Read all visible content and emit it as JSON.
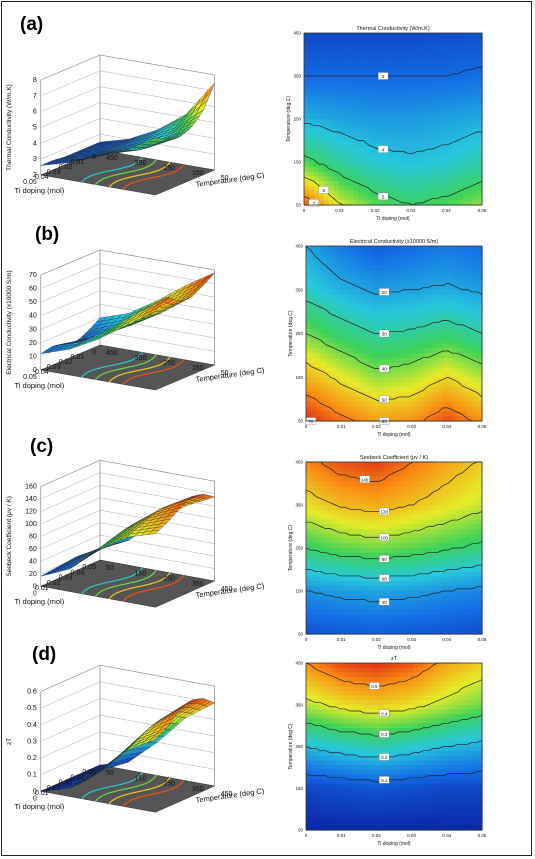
{
  "panels": [
    {
      "label": "(a)",
      "surface": {
        "zlabel": "Thermal Conductivity  (W/m.K)",
        "zticks": [
          "2",
          "3",
          "4",
          "5",
          "6",
          "7",
          "8"
        ],
        "doping_label": "Ti doping (mol)",
        "doping_ticks": [
          "0.05",
          "0.04",
          "0.03",
          "0.02",
          "0.01",
          "0"
        ],
        "temp_label": "Temperature (deg C)",
        "temp_ticks": [
          "450",
          "350",
          "250",
          "150",
          "50"
        ]
      },
      "contour": {
        "title": "Thermal Conductivity  (W/m.K)",
        "xlabel": "Ti doping (mol)",
        "ylabel": "Temperature (deg C)",
        "xticks": [
          "0",
          "0.01",
          "0.02",
          "0.03",
          "0.04",
          "0.05"
        ],
        "yticks": [
          "50",
          "150",
          "250",
          "350",
          "450"
        ],
        "level_labels": [
          "3",
          "4",
          "5",
          "6",
          "7"
        ]
      }
    },
    {
      "label": "(b)",
      "surface": {
        "zlabel": "Electrical Conductivity  (x10000 S/m)",
        "zticks": [
          "0",
          "10",
          "20",
          "30",
          "40",
          "50",
          "60",
          "70"
        ],
        "doping_label": "Ti doping (mol)",
        "doping_ticks": [
          "0.05",
          "0.04",
          "0.03",
          "0.02",
          "0.01",
          "0"
        ],
        "temp_label": "Temperature (deg C)",
        "temp_ticks": [
          "450",
          "350",
          "250",
          "150",
          "50"
        ]
      },
      "contour": {
        "title": "Electrical Conductivity  (x10000 S/m)",
        "xlabel": "Ti doping (mol)",
        "ylabel": "Temperature (deg C)",
        "xticks": [
          "0",
          "0.01",
          "0.02",
          "0.03",
          "0.04",
          "0.05"
        ],
        "yticks": [
          "50",
          "150",
          "250",
          "350",
          "450"
        ],
        "level_labels": [
          "70",
          "60",
          "50",
          "40",
          "30",
          "20"
        ]
      }
    },
    {
      "label": "(c)",
      "surface": {
        "zlabel": "Seebeck Coefficient  (μv / K)",
        "zticks": [
          "0",
          "20",
          "40",
          "60",
          "80",
          "100",
          "120",
          "140",
          "160"
        ],
        "doping_label": "Ti doping (mol)",
        "doping_ticks": [
          "0",
          "0.01",
          "0.02",
          "0.03",
          "0.04",
          "0.05"
        ],
        "temp_label": "Temperature (deg C)",
        "temp_ticks": [
          "50",
          "150",
          "250",
          "350",
          "450"
        ]
      },
      "contour": {
        "title": "Seebeck Coefficient  (μv / K)",
        "xlabel": "Ti doping (mol)",
        "ylabel": "Temperature (deg C)",
        "xticks": [
          "0",
          "0.01",
          "0.02",
          "0.03",
          "0.04",
          "0.05"
        ],
        "yticks": [
          "50",
          "150",
          "250",
          "350",
          "450"
        ],
        "level_labels": [
          "140",
          "120",
          "100",
          "80",
          "60",
          "40"
        ]
      }
    },
    {
      "label": "(d)",
      "surface": {
        "zlabel": "zT",
        "zticks": [
          "0",
          "0.1",
          "0.2",
          "0.3",
          "0.4",
          "0.5",
          "0.6"
        ],
        "doping_label": "Ti doping (mol)",
        "doping_ticks": [
          "0",
          "0.01",
          "0.02",
          "0.03",
          "0.04",
          "0.05"
        ],
        "temp_label": "Temperature (deg C)",
        "temp_ticks": [
          "50",
          "150",
          "250",
          "350",
          "450"
        ]
      },
      "contour": {
        "title": "zT",
        "xlabel": "Ti doping (mol)",
        "ylabel": "Temperature (deg C)",
        "xticks": [
          "0",
          "0.01",
          "0.02",
          "0.03",
          "0.04",
          "0.05"
        ],
        "yticks": [
          "50",
          "150",
          "250",
          "350",
          "450"
        ],
        "level_labels": [
          "0.5",
          "0.4",
          "0.3",
          "0.2",
          "0.1"
        ]
      }
    }
  ],
  "chart_data": [
    {
      "type": "heatmap",
      "title": "Thermal Conductivity  (W/m.K)",
      "xlabel": "Ti doping (mol)",
      "ylabel": "Temperature (deg C)",
      "x": [
        0,
        0.01,
        0.02,
        0.03,
        0.04,
        0.05
      ],
      "y": [
        50,
        150,
        250,
        350,
        450
      ],
      "z": [
        [
          7.5,
          6.0,
          5.3,
          5.0,
          5.2,
          5.6
        ],
        [
          5.2,
          4.6,
          4.2,
          4.1,
          4.2,
          4.5
        ],
        [
          3.9,
          3.7,
          3.6,
          3.6,
          3.7,
          3.8
        ],
        [
          3.0,
          3.0,
          3.0,
          3.0,
          3.0,
          3.1
        ],
        [
          2.5,
          2.5,
          2.5,
          2.5,
          2.6,
          2.6
        ]
      ],
      "zlim": [
        2,
        8
      ]
    },
    {
      "type": "heatmap",
      "title": "Electrical Conductivity  (x10000 S/m)",
      "xlabel": "Ti doping (mol)",
      "ylabel": "Temperature (deg C)",
      "x": [
        0,
        0.01,
        0.02,
        0.03,
        0.04,
        0.05
      ],
      "y": [
        50,
        150,
        250,
        350,
        450
      ],
      "z": [
        [
          68,
          62,
          57,
          58,
          65,
          58
        ],
        [
          55,
          48,
          42,
          44,
          50,
          44
        ],
        [
          40,
          34,
          30,
          31,
          34,
          30
        ],
        [
          27,
          22,
          19,
          20,
          21,
          19
        ],
        [
          20,
          14,
          10,
          12,
          14,
          12
        ]
      ],
      "zlim": [
        0,
        70
      ]
    },
    {
      "type": "heatmap",
      "title": "Seebeck Coefficient  (μv / K)",
      "xlabel": "Ti doping (mol)",
      "ylabel": "Temperature (deg C)",
      "x": [
        0,
        0.01,
        0.02,
        0.03,
        0.04,
        0.05
      ],
      "y": [
        50,
        150,
        250,
        350,
        450
      ],
      "z": [
        [
          18,
          20,
          22,
          20,
          18,
          16
        ],
        [
          40,
          44,
          46,
          44,
          40,
          36
        ],
        [
          80,
          88,
          92,
          88,
          82,
          76
        ],
        [
          112,
          122,
          126,
          120,
          112,
          104
        ],
        [
          135,
          148,
          152,
          140,
          128,
          118
        ]
      ],
      "zlim": [
        0,
        160
      ]
    },
    {
      "type": "heatmap",
      "title": "zT",
      "xlabel": "Ti doping (mol)",
      "ylabel": "Temperature (deg C)",
      "x": [
        0,
        0.01,
        0.02,
        0.03,
        0.04,
        0.05
      ],
      "y": [
        50,
        150,
        250,
        350,
        450
      ],
      "z": [
        [
          0.0,
          0.0,
          0.0,
          0.0,
          0.0,
          0.0
        ],
        [
          0.05,
          0.06,
          0.07,
          0.06,
          0.05,
          0.05
        ],
        [
          0.2,
          0.23,
          0.25,
          0.23,
          0.2,
          0.18
        ],
        [
          0.38,
          0.42,
          0.44,
          0.42,
          0.38,
          0.34
        ],
        [
          0.5,
          0.56,
          0.58,
          0.55,
          0.48,
          0.44
        ]
      ],
      "zlim": [
        0,
        0.6
      ]
    }
  ]
}
